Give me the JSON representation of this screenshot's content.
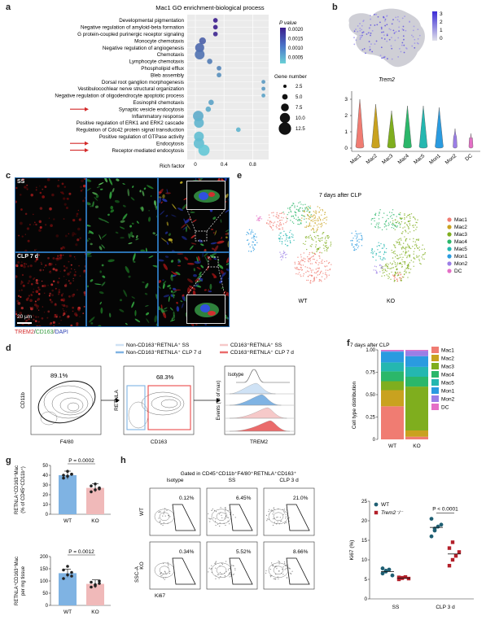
{
  "panels": {
    "a": "a",
    "b": "b",
    "c": "c",
    "d": "d",
    "e": "e",
    "f": "f",
    "g": "g",
    "h": "h"
  },
  "a": {
    "title": "Mac1 GO enrichment-biological process",
    "xlabel": "Rich factor",
    "xticks": [
      "0",
      "0.4",
      "0.8"
    ],
    "pvalue_title": "P value",
    "pvalue_ticks": [
      "0.0020",
      "0.0015",
      "0.0010",
      "0.0005"
    ],
    "gene_title": "Gene number",
    "gene_sizes": [
      "2.5",
      "5.0",
      "7.5",
      "10.0",
      "12.5"
    ],
    "colors": {
      "high": "#3b1c8c",
      "low": "#64c8d6",
      "arrow": "#d42a2a"
    },
    "terms": [
      {
        "label": "Developmental pigmentation",
        "rich": 0.28,
        "p": 0.0021,
        "genes": 3
      },
      {
        "label": "Negative regulation of amyloid-beta formation",
        "rich": 0.28,
        "p": 0.002,
        "genes": 3
      },
      {
        "label": "G protein-coupled purinergic receptor signaling",
        "rich": 0.28,
        "p": 0.0019,
        "genes": 3
      },
      {
        "label": "Monocyte chemotaxis",
        "rich": 0.1,
        "p": 0.0013,
        "genes": 6
      },
      {
        "label": "Negative regulation of angiogenesis",
        "rich": 0.06,
        "p": 0.0012,
        "genes": 9
      },
      {
        "label": "Chemotaxis",
        "rich": 0.06,
        "p": 0.0011,
        "genes": 10
      },
      {
        "label": "Lymphocyte chemotaxis",
        "rich": 0.2,
        "p": 0.001,
        "genes": 4
      },
      {
        "label": "Phospholipid efflux",
        "rich": 0.33,
        "p": 0.0009,
        "genes": 3
      },
      {
        "label": "Bleb assembly",
        "rich": 0.33,
        "p": 0.0008,
        "genes": 3
      },
      {
        "label": "Dorsal root ganglion morphogenesis",
        "rich": 0.95,
        "p": 0.0007,
        "genes": 2
      },
      {
        "label": "Vestibulocochlear nerve structural organization",
        "rich": 0.95,
        "p": 0.0007,
        "genes": 2
      },
      {
        "label": "Negative regulation of oligodendrocyte apoptotic process",
        "rich": 0.95,
        "p": 0.0006,
        "genes": 2
      },
      {
        "label": "Eosinophil chemotaxis",
        "rich": 0.22,
        "p": 0.0006,
        "genes": 4
      },
      {
        "label": "Synaptic vesicle endocytosis",
        "rich": 0.18,
        "p": 0.0005,
        "genes": 4
      },
      {
        "label": "Inflammatory response",
        "rich": 0.04,
        "p": 0.0005,
        "genes": 11
      },
      {
        "label": "Positive regulation of ERK1 and ERK2 cascade",
        "rich": 0.05,
        "p": 0.0004,
        "genes": 10
      },
      {
        "label": "Regulation of Cdc42 protein signal transduction",
        "rich": 0.6,
        "p": 0.0004,
        "genes": 3
      },
      {
        "label": "Positive regulation of GTPase activity",
        "rich": 0.05,
        "p": 0.0003,
        "genes": 10
      },
      {
        "label": "Endocytosis",
        "rich": 0.05,
        "p": 0.0003,
        "genes": 11
      },
      {
        "label": "Receptor-mediated endocytosis",
        "rich": 0.12,
        "p": 0.0002,
        "genes": 12
      }
    ],
    "arrows_on": [
      "Synaptic vesicle endocytosis",
      "Endocytosis",
      "Receptor-mediated endocytosis"
    ]
  },
  "b": {
    "gene": "Trem2",
    "colorbar_ticks": [
      "3",
      "2",
      "1",
      "0"
    ],
    "violin_yticks": [
      "0",
      "1",
      "2",
      "3"
    ],
    "violin_groups": [
      {
        "name": "Mac1",
        "color": "#f07c72",
        "height": 3.0
      },
      {
        "name": "Mac2",
        "color": "#c9a21f",
        "height": 2.7
      },
      {
        "name": "Mac3",
        "color": "#7fae1e",
        "height": 2.3
      },
      {
        "name": "Mac4",
        "color": "#2bb76a",
        "height": 2.6
      },
      {
        "name": "Mac5",
        "color": "#24b7b0",
        "height": 2.6
      },
      {
        "name": "Mon1",
        "color": "#2a9be0",
        "height": 2.5
      },
      {
        "name": "Mon2",
        "color": "#9b7ee6",
        "height": 1.2
      },
      {
        "name": "DC",
        "color": "#e46fc6",
        "height": 0.9
      }
    ]
  },
  "c": {
    "row_ss": "SS",
    "row_clp": "CLP 7 d",
    "scale": "20 μm",
    "legend_trem2": "TREM2",
    "legend_cd163": "CD163",
    "legend_dapi": "DAPI",
    "sep": "/"
  },
  "d": {
    "legend": [
      {
        "label": "Non-CD163⁺RETNLA⁺ SS",
        "color": "#cfe2f5"
      },
      {
        "label": "Non-CD163⁺RETNLA⁺ CLP 7 d",
        "color": "#7fb3e3"
      },
      {
        "label": "CD163⁺RETNLA⁺ SS",
        "color": "#f6c9c9"
      },
      {
        "label": "CD163⁺RETNLA⁺ CLP 7 d",
        "color": "#ea6b6b"
      }
    ],
    "gate1_pct": "89.1%",
    "gate2_pct": "68.3%",
    "xlab1": "F4/80",
    "ylab1": "CD11b",
    "xlab2": "CD163",
    "ylab2": "RETNLA",
    "hist_ylabel": "Events (% of max)",
    "hist_xlabel": "TREM2",
    "isotype": "Isotype"
  },
  "e": {
    "title": "7 days after CLP",
    "wt": "WT",
    "ko": "KO",
    "legend": [
      {
        "name": "Mac1",
        "color": "#f07c72"
      },
      {
        "name": "Mac2",
        "color": "#c9a21f"
      },
      {
        "name": "Mac3",
        "color": "#7fae1e"
      },
      {
        "name": "Mac4",
        "color": "#2bb76a"
      },
      {
        "name": "Mac5",
        "color": "#24b7b0"
      },
      {
        "name": "Mon1",
        "color": "#2a9be0"
      },
      {
        "name": "Mon2",
        "color": "#9b7ee6"
      },
      {
        "name": "DC",
        "color": "#e46fc6"
      }
    ]
  },
  "f": {
    "title": "7 days after CLP",
    "ylabel": "Cell type distribution",
    "yticks": [
      "0",
      "0.25",
      "0.50",
      "0.75",
      "1.00"
    ],
    "categories": [
      "WT",
      "KO"
    ],
    "series": [
      {
        "name": "Mac1",
        "color": "#f07c72",
        "values": [
          0.37,
          0.03
        ]
      },
      {
        "name": "Mac2",
        "color": "#c9a21f",
        "values": [
          0.18,
          0.07
        ]
      },
      {
        "name": "Mac3",
        "color": "#7fae1e",
        "values": [
          0.1,
          0.49
        ]
      },
      {
        "name": "Mac4",
        "color": "#2bb76a",
        "values": [
          0.11,
          0.11
        ]
      },
      {
        "name": "Mac5",
        "color": "#24b7b0",
        "values": [
          0.1,
          0.11
        ]
      },
      {
        "name": "Mon1",
        "color": "#2a9be0",
        "values": [
          0.12,
          0.12
        ]
      },
      {
        "name": "Mon2",
        "color": "#9b7ee6",
        "values": [
          0.01,
          0.06
        ]
      },
      {
        "name": "DC",
        "color": "#e46fc6",
        "values": [
          0.01,
          0.01
        ]
      }
    ]
  },
  "g": {
    "top": {
      "p": "P = 0.0002",
      "ylabel1": "RETNLA⁺CD163⁺Mac",
      "ylabel2": "(% of CD45⁺CD11b⁺)",
      "yticks": [
        "0",
        "10",
        "20",
        "30",
        "40",
        "50"
      ],
      "ymax": 50,
      "wt_mean": 40,
      "ko_mean": 27,
      "wt_points": [
        37,
        39,
        41,
        40,
        44,
        41
      ],
      "ko_points": [
        23,
        25,
        27,
        29,
        31,
        26
      ]
    },
    "bottom": {
      "p": "P = 0.0012",
      "ylabel1": "RETNLA⁺CD163⁺Mac",
      "ylabel2": "per mg tissue",
      "yticks": [
        "0",
        "50",
        "100",
        "150",
        "200"
      ],
      "ymax": 200,
      "wt_mean": 132,
      "ko_mean": 88,
      "wt_points": [
        110,
        125,
        135,
        145,
        160,
        120
      ],
      "ko_points": [
        75,
        85,
        90,
        95,
        80,
        100
      ]
    },
    "categories": [
      "WT",
      "KO"
    ],
    "colors": {
      "wt": "#7fb3e3",
      "ko": "#f0b9b9"
    }
  },
  "h": {
    "title": "Gated in CD45⁺CD11b⁺F4/80⁺RETNLA⁺CD163⁺",
    "cols": [
      "Isotype",
      "SS",
      "CLP 3 d"
    ],
    "rows": [
      "WT",
      "KO"
    ],
    "wt_pcts": [
      "0.12%",
      "6.45%",
      "21.0%"
    ],
    "ko_pcts": [
      "0.34%",
      "5.52%",
      "8.66%"
    ],
    "xlabel": "Ki67",
    "ylabel": "SSC-A",
    "scatter": {
      "ylabel": "Ki67 (%)",
      "yticks": [
        "0",
        "5",
        "10",
        "15",
        "20",
        "25"
      ],
      "ymax": 25,
      "categories": [
        "SS",
        "CLP 3 d"
      ],
      "p": "P < 0.0001",
      "legend_wt": "WT",
      "legend_ko": "Trem2⁻/⁻",
      "wt_color": "#1f5f73",
      "ko_color": "#b3202a",
      "wt_ss": [
        6.5,
        7.0,
        7.5,
        6.0,
        7.8,
        7.2
      ],
      "ko_ss": [
        5.0,
        5.3,
        5.6,
        5.2,
        5.5,
        5.4
      ],
      "wt_clp": [
        16.0,
        17.5,
        18.5,
        19.0,
        20.5,
        18.0
      ],
      "ko_clp": [
        8.5,
        10.0,
        11.0,
        12.0,
        13.0,
        14.5
      ],
      "wt_ss_mean": 7.0,
      "ko_ss_mean": 5.3,
      "wt_clp_mean": 18.3,
      "ko_clp_mean": 11.5
    }
  }
}
